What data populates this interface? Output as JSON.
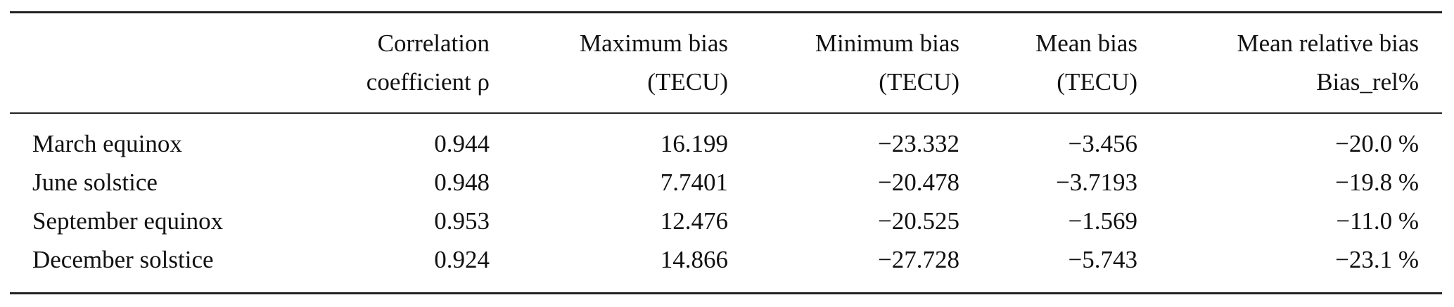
{
  "table": {
    "headers": [
      {
        "line1": "",
        "line2": ""
      },
      {
        "line1": "Correlation",
        "line2": "coefficient ρ"
      },
      {
        "line1": "Maximum bias",
        "line2": "(TECU)"
      },
      {
        "line1": "Minimum bias",
        "line2": "(TECU)"
      },
      {
        "line1": "Mean bias",
        "line2": "(TECU)"
      },
      {
        "line1": "Mean relative bias",
        "line2": "Bias_rel%"
      }
    ],
    "rows": [
      [
        "March equinox",
        "0.944",
        "16.199",
        "−23.332",
        "−3.456",
        "−20.0 %"
      ],
      [
        "June solstice",
        "0.948",
        "7.7401",
        "−20.478",
        "−3.7193",
        "−19.8 %"
      ],
      [
        "September equinox",
        "0.953",
        "12.476",
        "−20.525",
        "−1.569",
        "−11.0 %"
      ],
      [
        "December solstice",
        "0.924",
        "14.866",
        "−27.728",
        "−5.743",
        "−23.1 %"
      ]
    ]
  }
}
